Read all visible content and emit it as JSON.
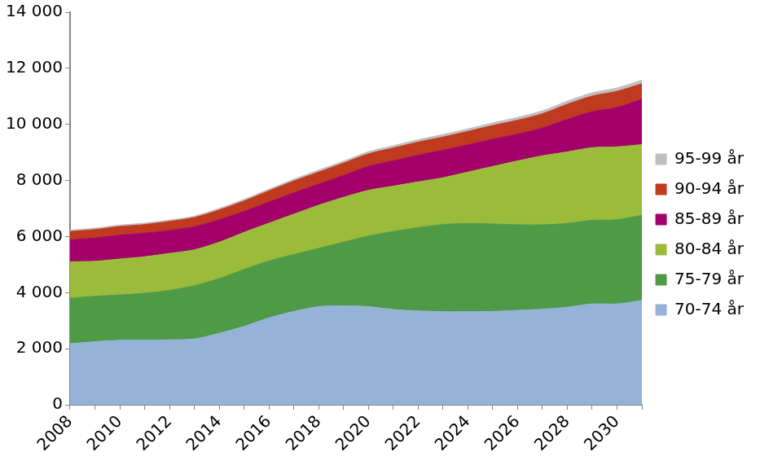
{
  "chart_data": {
    "type": "area",
    "stacked": true,
    "grid": false,
    "legend": "right",
    "categories": [
      2008,
      null,
      2010,
      null,
      2012,
      null,
      2014,
      null,
      2016,
      null,
      2018,
      null,
      2020,
      null,
      2022,
      null,
      2024,
      null,
      2026,
      null,
      2028,
      null,
      2030,
      null
    ],
    "ylim": [
      0,
      14000
    ],
    "yticks": [
      0,
      {
        "value": 2000,
        "label": "2 000"
      },
      {
        "value": 4000,
        "label": "4 000"
      },
      {
        "value": 6000,
        "label": "6 000"
      },
      {
        "value": 8000,
        "label": "8 000"
      },
      {
        "value": 10000,
        "label": "10 000"
      },
      {
        "value": 12000,
        "label": "12 000"
      },
      {
        "value": 14000,
        "label": "14 000"
      }
    ],
    "series": [
      {
        "name": "70-74 år",
        "color": "#95b3d7",
        "values": [
          2180,
          2250,
          2300,
          2300,
          2320,
          2350,
          2550,
          2800,
          3100,
          3330,
          3500,
          3530,
          3500,
          3400,
          3350,
          3320,
          3320,
          3330,
          3370,
          3410,
          3480,
          3600,
          3600,
          3720
        ]
      },
      {
        "name": "75-79 år",
        "color": "#4f9a47",
        "values": [
          1620,
          1620,
          1620,
          1680,
          1760,
          1900,
          1950,
          2030,
          2030,
          2030,
          2080,
          2270,
          2520,
          2780,
          2970,
          3110,
          3150,
          3120,
          3050,
          3010,
          2990,
          2980,
          3000,
          3040
        ]
      },
      {
        "name": "80-84 år",
        "color": "#9bbb3b",
        "values": [
          1300,
          1250,
          1280,
          1300,
          1320,
          1280,
          1300,
          1320,
          1350,
          1440,
          1540,
          1600,
          1630,
          1620,
          1630,
          1670,
          1830,
          2050,
          2280,
          2460,
          2550,
          2590,
          2600,
          2520
        ]
      },
      {
        "name": "85-89 år",
        "color": "#a3006a",
        "values": [
          780,
          830,
          850,
          840,
          820,
          820,
          800,
          750,
          750,
          760,
          750,
          780,
          850,
          900,
          950,
          980,
          970,
          970,
          950,
          990,
          1160,
          1280,
          1400,
          1620
        ]
      },
      {
        "name": "90-94 år",
        "color": "#bf3a1f",
        "values": [
          300,
          300,
          310,
          310,
          320,
          330,
          350,
          370,
          400,
          420,
          430,
          440,
          450,
          460,
          470,
          470,
          480,
          490,
          500,
          510,
          540,
          560,
          580,
          550
        ]
      },
      {
        "name": "95-99 år",
        "color": "#bfbfbf",
        "values": [
          50,
          50,
          50,
          50,
          50,
          50,
          55,
          60,
          60,
          65,
          70,
          70,
          75,
          80,
          85,
          90,
          90,
          95,
          100,
          105,
          110,
          115,
          120,
          130
        ]
      }
    ]
  }
}
